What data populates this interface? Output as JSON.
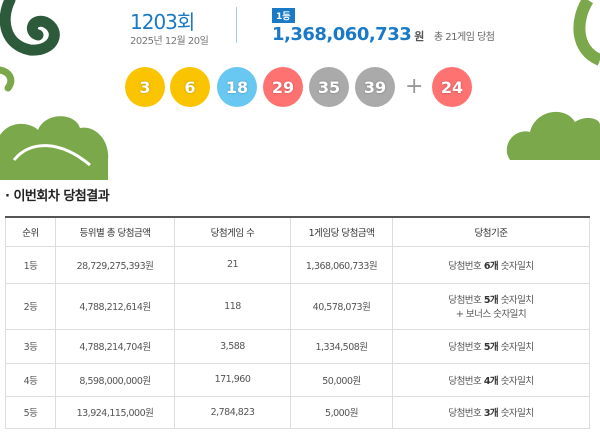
{
  "draw": {
    "round": "1203회",
    "date": "2025년 12월 20일",
    "badge": "1등",
    "first_prize": "1,368,060,733",
    "won": "원",
    "total": "총 21게임 당첨"
  },
  "balls": [
    {
      "n": "3",
      "color": "#fbc400"
    },
    {
      "n": "6",
      "color": "#fbc400"
    },
    {
      "n": "18",
      "color": "#69c8f2"
    },
    {
      "n": "29",
      "color": "#ff7272"
    },
    {
      "n": "35",
      "color": "#aaaaaa"
    },
    {
      "n": "39",
      "color": "#aaaaaa"
    }
  ],
  "plus": "+",
  "bonus": {
    "n": "24",
    "color": "#ff7272"
  },
  "section_title": "· 이번회차 당첨결과",
  "table": {
    "headers": [
      "순위",
      "등위별 총 당첨금액",
      "당첨게임 수",
      "1게임당 당첨금액",
      "당첨기준"
    ],
    "rows": [
      {
        "rank": "1등",
        "total": "28,729,275,393원",
        "count": "21",
        "each": "1,368,060,733원",
        "c1": "당첨번호 ",
        "c2": "6개",
        "c3": " 숫자일치",
        "c4": ""
      },
      {
        "rank": "2등",
        "total": "4,788,212,614원",
        "count": "118",
        "each": "40,578,073원",
        "c1": "당첨번호 ",
        "c2": "5개",
        "c3": " 숫자일치",
        "c4": "+ 보너스 숫자일치"
      },
      {
        "rank": "3등",
        "total": "4,788,214,704원",
        "count": "3,588",
        "each": "1,334,508원",
        "c1": "당첨번호 ",
        "c2": "5개",
        "c3": " 숫자일치",
        "c4": ""
      },
      {
        "rank": "4등",
        "total": "8,598,000,000원",
        "count": "171,960",
        "each": "50,000원",
        "c1": "당첨번호 ",
        "c2": "4개",
        "c3": " 숫자일치",
        "c4": ""
      },
      {
        "rank": "5등",
        "total": "13,924,115,000원",
        "count": "2,784,823",
        "each": "5,000원",
        "c1": "당첨번호 ",
        "c2": "3개",
        "c3": " 숫자일치",
        "c4": ""
      }
    ]
  }
}
